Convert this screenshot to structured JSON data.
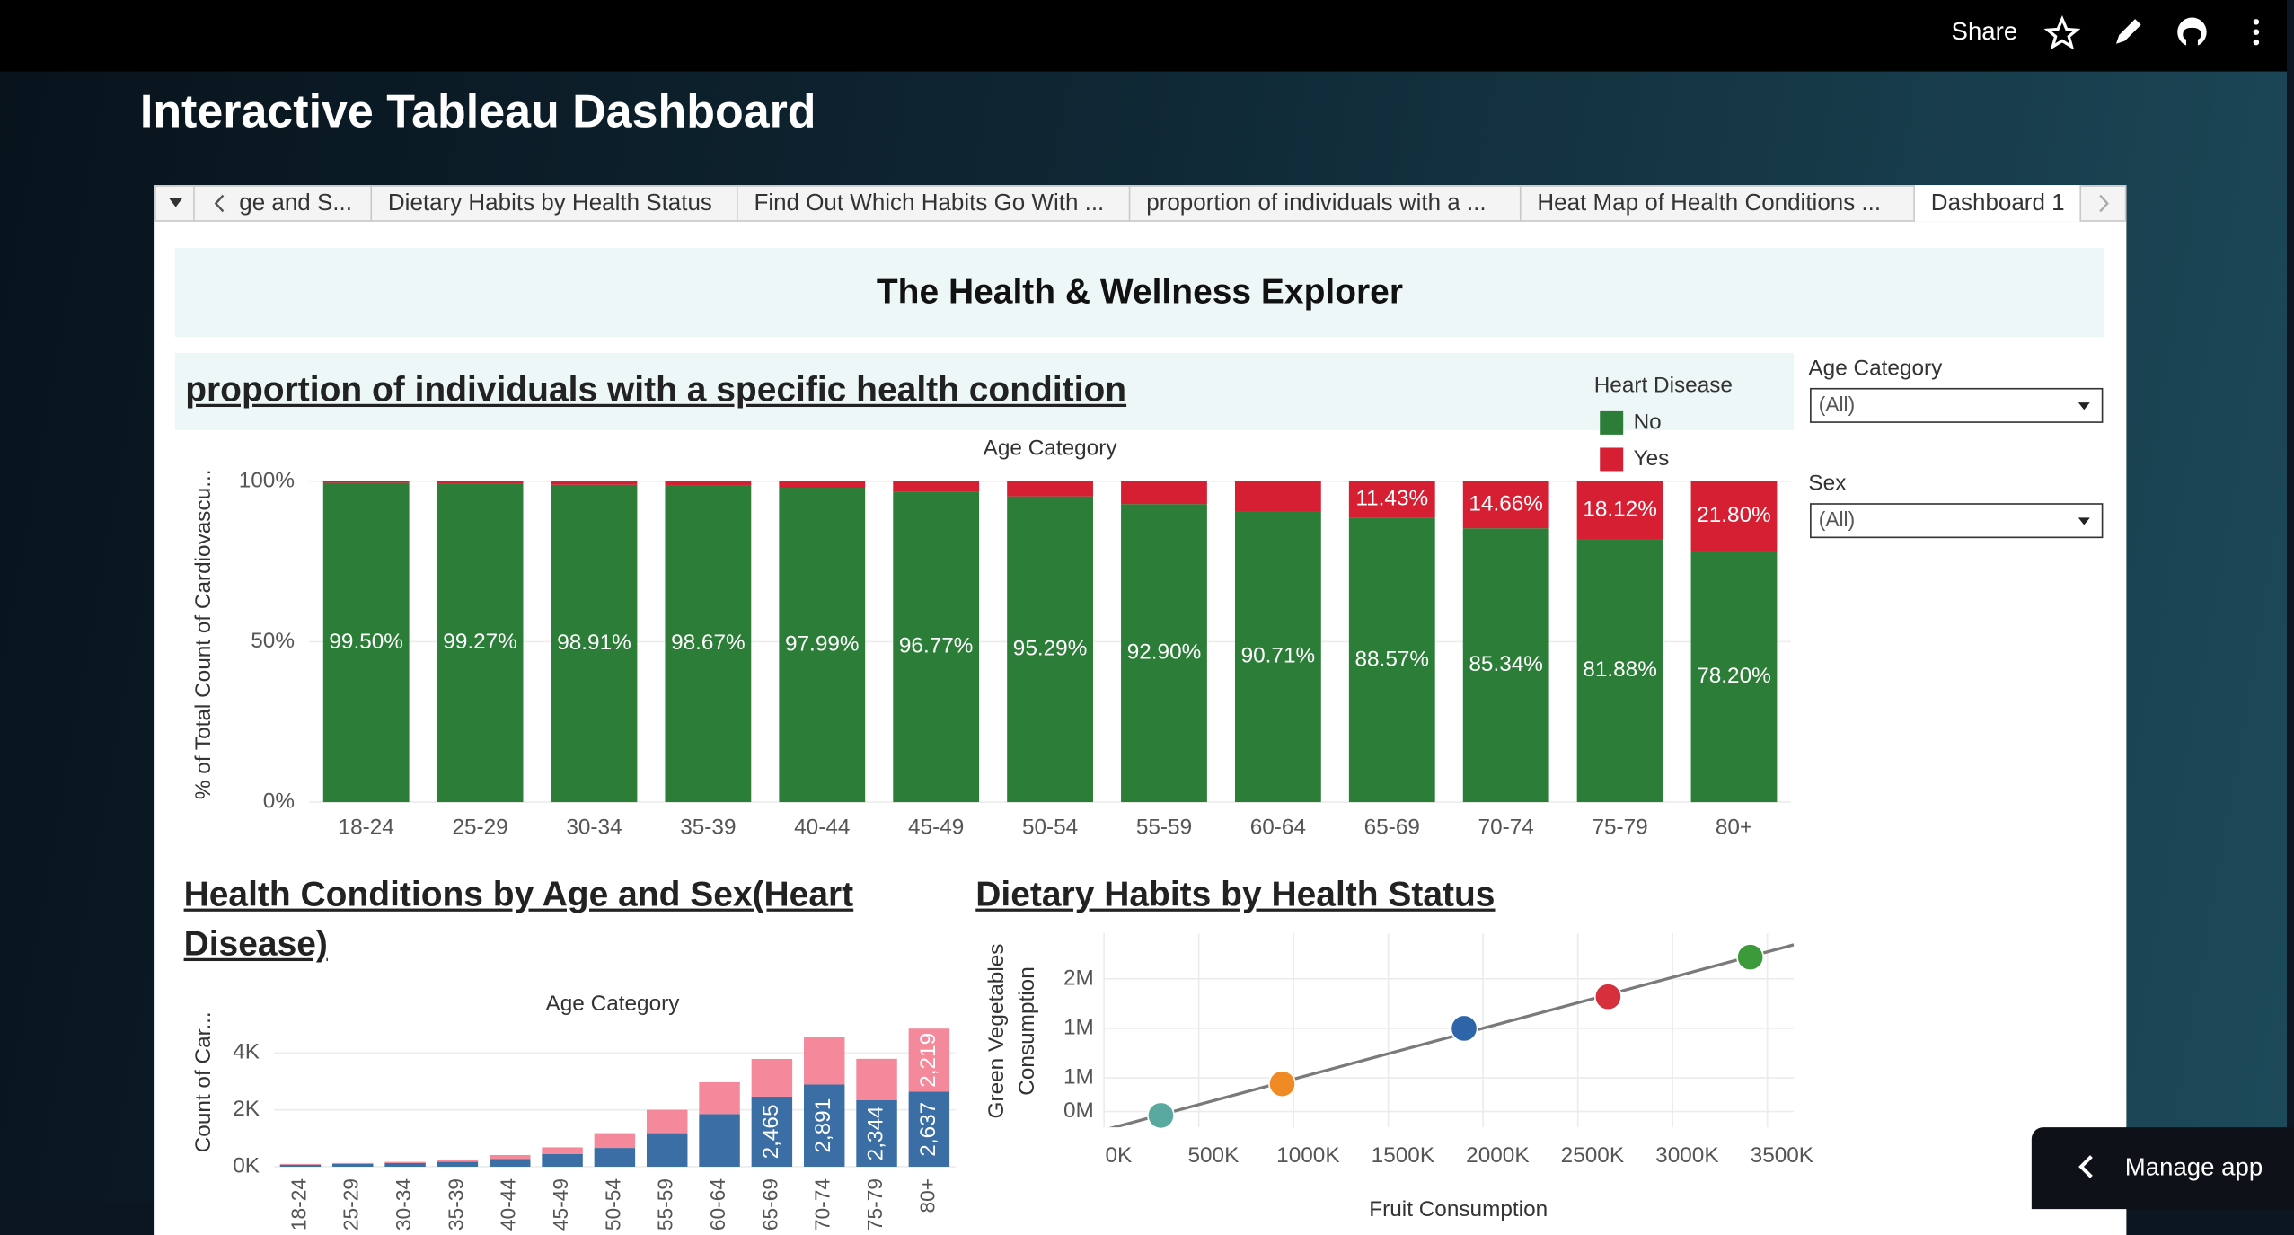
{
  "topbar": {
    "share": "Share"
  },
  "app_title": "Interactive Tableau Dashboard",
  "tabs": [
    "ge and S...",
    "Dietary Habits by Health Status",
    "Find Out Which Habits Go With ...",
    "proportion of individuals with a ...",
    "Heat Map of Health Conditions ...",
    "Dashboard 1"
  ],
  "dashboard": {
    "title": "The Health & Wellness Explorer",
    "filters": [
      {
        "label": "Age Category",
        "value": "(All)"
      },
      {
        "label": "Sex",
        "value": "(All)"
      }
    ]
  },
  "chart_data": [
    {
      "type": "bar",
      "stacked": true,
      "grid": true,
      "title": "proportion of individuals with a specific health condition",
      "x_label": "Age Category",
      "y_label": "% of Total Count of Cardiovascu...",
      "legend_title": "Heart Disease",
      "categories": [
        "18-24",
        "25-29",
        "30-34",
        "35-39",
        "40-44",
        "45-49",
        "50-54",
        "55-59",
        "60-64",
        "65-69",
        "70-74",
        "75-79",
        "80+"
      ],
      "series": [
        {
          "name": "No",
          "color": "#2b7d37",
          "values": [
            99.5,
            99.27,
            98.91,
            98.67,
            97.99,
            96.77,
            95.29,
            92.9,
            90.71,
            88.57,
            85.34,
            81.88,
            78.2
          ],
          "value_labels": [
            "99.50%",
            "99.27%",
            "98.91%",
            "98.67%",
            "97.99%",
            "96.77%",
            "95.29%",
            "92.90%",
            "90.71%",
            "88.57%",
            "85.34%",
            "81.88%",
            "78.20%"
          ]
        },
        {
          "name": "Yes",
          "color": "#d61f33",
          "values": [
            0.5,
            0.73,
            1.09,
            1.33,
            2.01,
            3.23,
            4.71,
            7.1,
            9.29,
            11.43,
            14.66,
            18.12,
            21.8
          ],
          "value_labels": [
            null,
            null,
            null,
            null,
            null,
            null,
            null,
            null,
            null,
            "11.43%",
            "14.66%",
            "18.12%",
            "21.80%"
          ]
        }
      ],
      "ylim": [
        0,
        100
      ],
      "yticks": [
        {
          "value": 0,
          "label": "0%"
        },
        {
          "value": 50,
          "label": "50%"
        },
        {
          "value": 100,
          "label": "100%"
        }
      ]
    },
    {
      "type": "bar",
      "stacked": true,
      "grid": true,
      "title": "Health Conditions by Age and Sex(Heart Disease)",
      "x_label": "Age Category",
      "y_label": "Count of Car...",
      "categories": [
        "18-24",
        "25-29",
        "30-34",
        "35-39",
        "40-44",
        "45-49",
        "50-54",
        "55-59",
        "60-64",
        "65-69",
        "70-74",
        "75-79",
        "80+"
      ],
      "series": [
        {
          "color": "#3b6ea5",
          "values": [
            70,
            100,
            130,
            170,
            270,
            450,
            660,
            1180,
            1850,
            2465,
            2891,
            2344,
            2637
          ],
          "value_labels": [
            null,
            null,
            null,
            null,
            null,
            null,
            null,
            null,
            null,
            "2,465",
            "2,891",
            "2,344",
            "2,637"
          ]
        },
        {
          "color": "#f4899c",
          "values": [
            30,
            30,
            40,
            60,
            140,
            230,
            520,
            820,
            1120,
            1325,
            1670,
            1450,
            2219
          ],
          "value_labels": [
            null,
            null,
            null,
            null,
            null,
            null,
            null,
            null,
            null,
            null,
            null,
            null,
            "2,219"
          ]
        }
      ],
      "ylim": [
        0,
        5230
      ],
      "yticks": [
        {
          "value": 0,
          "label": "0K"
        },
        {
          "value": 2000,
          "label": "2K"
        },
        {
          "value": 4000,
          "label": "4K"
        }
      ]
    },
    {
      "type": "scatter",
      "grid": true,
      "trendline": true,
      "title": "Dietary Habits by Health Status",
      "x_label": "Fruit Consumption",
      "y_label": [
        "Green Vegetables",
        "Consumption"
      ],
      "x": [
        300000,
        940000,
        1900000,
        2660000,
        3410000
      ],
      "y": [
        370000,
        690000,
        1250000,
        1570000,
        1970000
      ],
      "colors": [
        "#5aa9a0",
        "#f08a24",
        "#2e64a8",
        "#d7303d",
        "#3c9a3a"
      ],
      "xlim": [
        0,
        3640000
      ],
      "ylim": [
        250000,
        2210000
      ],
      "xticks": [
        {
          "value": 0,
          "label": "0K"
        },
        {
          "value": 500000,
          "label": "500K"
        },
        {
          "value": 1000000,
          "label": "1000K"
        },
        {
          "value": 1500000,
          "label": "1500K"
        },
        {
          "value": 2000000,
          "label": "2000K"
        },
        {
          "value": 2500000,
          "label": "2500K"
        },
        {
          "value": 3000000,
          "label": "3000K"
        },
        {
          "value": 3500000,
          "label": "3500K"
        }
      ],
      "yticks": [
        {
          "value": 410000,
          "label": "0M"
        },
        {
          "value": 750000,
          "label": "1M"
        },
        {
          "value": 1250000,
          "label": "1M"
        },
        {
          "value": 1750000,
          "label": "2M"
        }
      ]
    }
  ],
  "manage_app": "Manage app"
}
